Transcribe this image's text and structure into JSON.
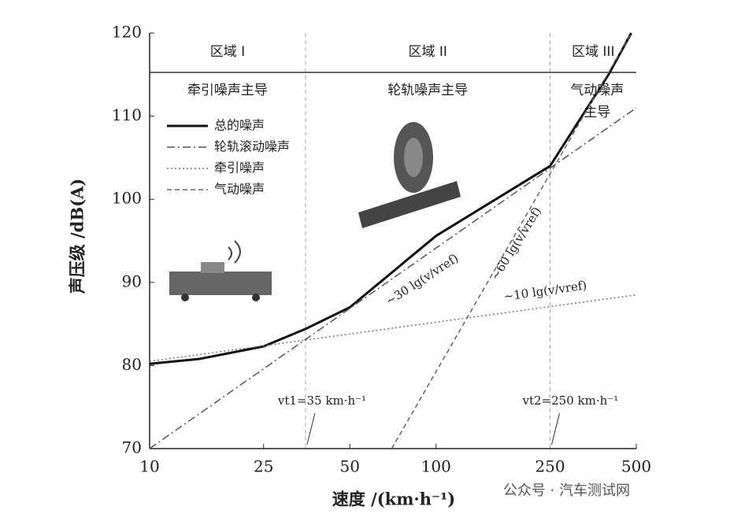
{
  "chart_data": {
    "type": "line",
    "x_label": "速度 /(km·h⁻¹)",
    "y_label": "声压级 /dB(A)",
    "log_x": true,
    "xlim": [
      10,
      500
    ],
    "xticks": [
      10,
      25,
      50,
      100,
      250,
      500
    ],
    "ylim": [
      70,
      120
    ],
    "yticks": [
      70,
      80,
      90,
      100,
      110,
      120
    ],
    "series": [
      {
        "name": "总的噪声",
        "color": "#111111",
        "style": "solid",
        "x": [
          10,
          15,
          25,
          35,
          50,
          100,
          250,
          400,
          480
        ],
        "values": [
          80.2,
          80.8,
          82.3,
          84.4,
          87,
          95.6,
          104,
          115,
          120
        ]
      },
      {
        "name": "轮轨滚动噪声",
        "color": "#555555",
        "style": "dashdot",
        "x": [
          10,
          500
        ],
        "values": [
          70,
          111
        ]
      },
      {
        "name": "牵引噪声",
        "color": "#777777",
        "style": "dotted",
        "x": [
          10,
          500
        ],
        "values": [
          80.5,
          88.5
        ]
      },
      {
        "name": "气动噪声",
        "color": "#666666",
        "style": "dashed",
        "x": [
          70,
          480
        ],
        "values": [
          70,
          120
        ]
      }
    ],
    "thresholds": [
      {
        "value": 35,
        "label": "vt1=35 km·h⁻¹"
      },
      {
        "value": 250,
        "label": "vt2=250 km·h⁻¹"
      }
    ],
    "zones": [
      {
        "label": "区域 I",
        "note": [
          "牵引噪声主导"
        ]
      },
      {
        "label": "区域 II",
        "note": [
          "轮轨噪声主导"
        ]
      },
      {
        "label": "区域 III",
        "note": [
          "气动噪声",
          "主导"
        ]
      }
    ],
    "annotations": [
      "~30 lg(v/vref)",
      "~60 lg(v/vref)",
      "~10 lg(v/vref)"
    ],
    "watermark": "公众号 · 汽车测试网"
  }
}
